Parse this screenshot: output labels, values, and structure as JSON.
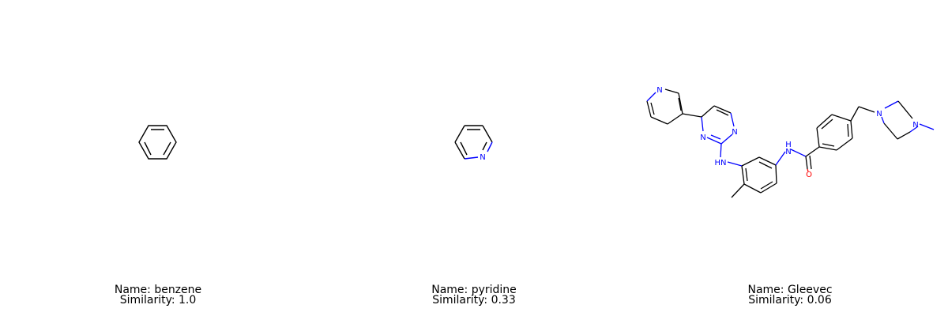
{
  "molecules": [
    {
      "name_line": "Name: benzene",
      "similarity_line": "Similarity: 1.0"
    },
    {
      "name_line": "Name: pyridine",
      "similarity_line": "Similarity: 0.33"
    },
    {
      "name_line": "Name: Gleevec",
      "similarity_line": "Similarity: 0.06"
    }
  ],
  "atom_labels": {
    "nitrogen": "N",
    "amine_nh": "HN",
    "amide_nh": "H\nN",
    "oxygen": "O"
  },
  "colors": {
    "bond": "#000000",
    "nitrogen": "#0000ff",
    "oxygen": "#ff0000",
    "background": "#ffffff"
  }
}
